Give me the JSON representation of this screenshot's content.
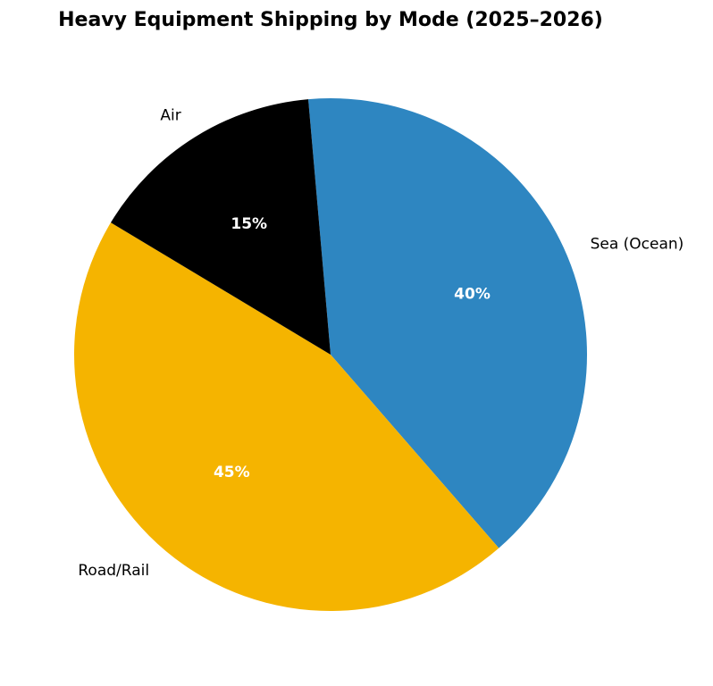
{
  "chart_data": {
    "type": "pie",
    "title": "Heavy Equipment Shipping by Mode (2025–2026)",
    "start_angle_deg": 95,
    "direction": "clockwise",
    "slices": [
      {
        "label": "Sea (Ocean)",
        "value": 40,
        "pct_label": "40%",
        "color": "#2e86c1"
      },
      {
        "label": "Road/Rail",
        "value": 45,
        "pct_label": "45%",
        "color": "#f5b400"
      },
      {
        "label": "Air",
        "value": 15,
        "pct_label": "15%",
        "color": "#000000"
      }
    ],
    "legend": "none"
  }
}
